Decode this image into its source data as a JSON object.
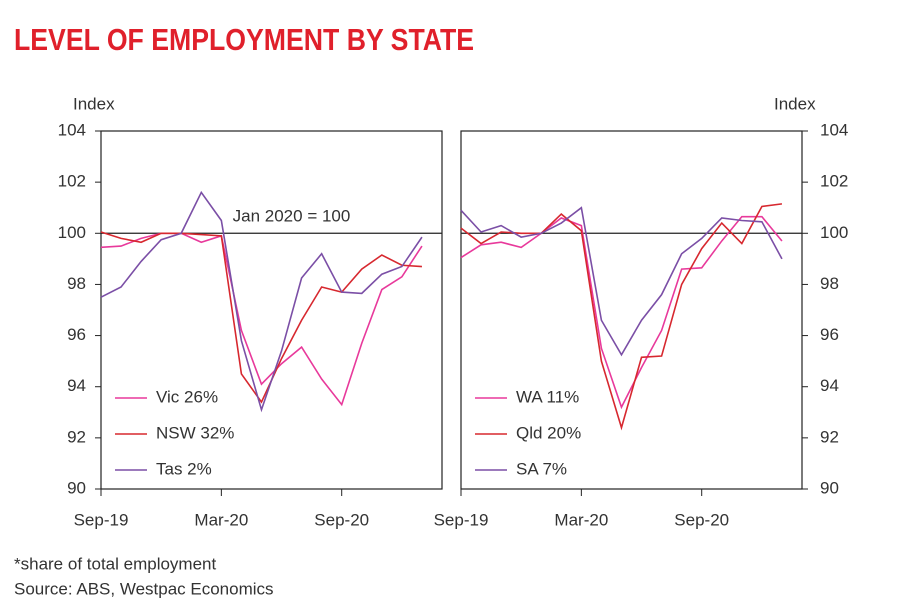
{
  "title": "LEVEL OF EMPLOYMENT BY STATE",
  "footnote": "*share of total employment",
  "source": "Source: ABS, Westpac Economics",
  "chart_data": [
    {
      "type": "line",
      "y_label": "Index",
      "y_axis_side": "left",
      "annotation": "Jan 2020 = 100",
      "reference_line": 100,
      "categories": [
        "Sep-19",
        null,
        null,
        null,
        null,
        null,
        "Mar-20",
        null,
        null,
        null,
        null,
        null,
        "Sep-20",
        null,
        null,
        null,
        null
      ],
      "ylim": [
        90,
        104
      ],
      "yticks": [
        90,
        92,
        94,
        96,
        98,
        100,
        102,
        104
      ],
      "series": [
        {
          "name": "Vic 26%",
          "color": "#e8399b",
          "values": [
            99.45,
            99.5,
            99.8,
            100.0,
            100.0,
            99.65,
            99.9,
            96.2,
            94.1,
            94.9,
            95.55,
            94.3,
            93.3,
            95.7,
            97.8,
            98.3,
            99.5
          ]
        },
        {
          "name": "NSW 32%",
          "color": "#d7282f",
          "values": [
            100.05,
            99.8,
            99.65,
            100.0,
            100.0,
            99.95,
            99.9,
            94.5,
            93.4,
            95.1,
            96.6,
            97.9,
            97.7,
            98.6,
            99.15,
            98.75,
            98.7
          ]
        },
        {
          "name": "Tas 2%",
          "color": "#7b4fa6",
          "values": [
            97.5,
            97.9,
            98.9,
            99.75,
            100.0,
            101.6,
            100.5,
            95.8,
            93.1,
            95.4,
            98.25,
            99.2,
            97.7,
            97.65,
            98.4,
            98.7,
            99.85
          ]
        }
      ]
    },
    {
      "type": "line",
      "y_label": "Index",
      "y_axis_side": "right",
      "reference_line": 100,
      "categories": [
        "Sep-19",
        null,
        null,
        null,
        null,
        null,
        "Mar-20",
        null,
        null,
        null,
        null,
        null,
        "Sep-20",
        null,
        null,
        null,
        null
      ],
      "ylim": [
        90,
        104
      ],
      "yticks": [
        90,
        92,
        94,
        96,
        98,
        100,
        102,
        104
      ],
      "series": [
        {
          "name": "WA 11%",
          "color": "#e8399b",
          "values": [
            99.05,
            99.55,
            99.65,
            99.45,
            100.0,
            100.6,
            100.3,
            95.5,
            93.2,
            94.75,
            96.2,
            98.6,
            98.65,
            99.7,
            100.65,
            100.65,
            99.7
          ]
        },
        {
          "name": "Qld 20%",
          "color": "#d7282f",
          "values": [
            100.2,
            99.6,
            100.05,
            100.0,
            100.0,
            100.75,
            100.1,
            95.0,
            92.4,
            95.15,
            95.2,
            98.0,
            99.4,
            100.4,
            99.6,
            101.05,
            101.15
          ]
        },
        {
          "name": "SA 7%",
          "color": "#7b4fa6",
          "values": [
            100.9,
            100.05,
            100.3,
            99.85,
            100.0,
            100.4,
            101.0,
            96.6,
            95.25,
            96.6,
            97.6,
            99.2,
            99.8,
            100.6,
            100.5,
            100.45,
            99.0
          ]
        }
      ]
    }
  ]
}
